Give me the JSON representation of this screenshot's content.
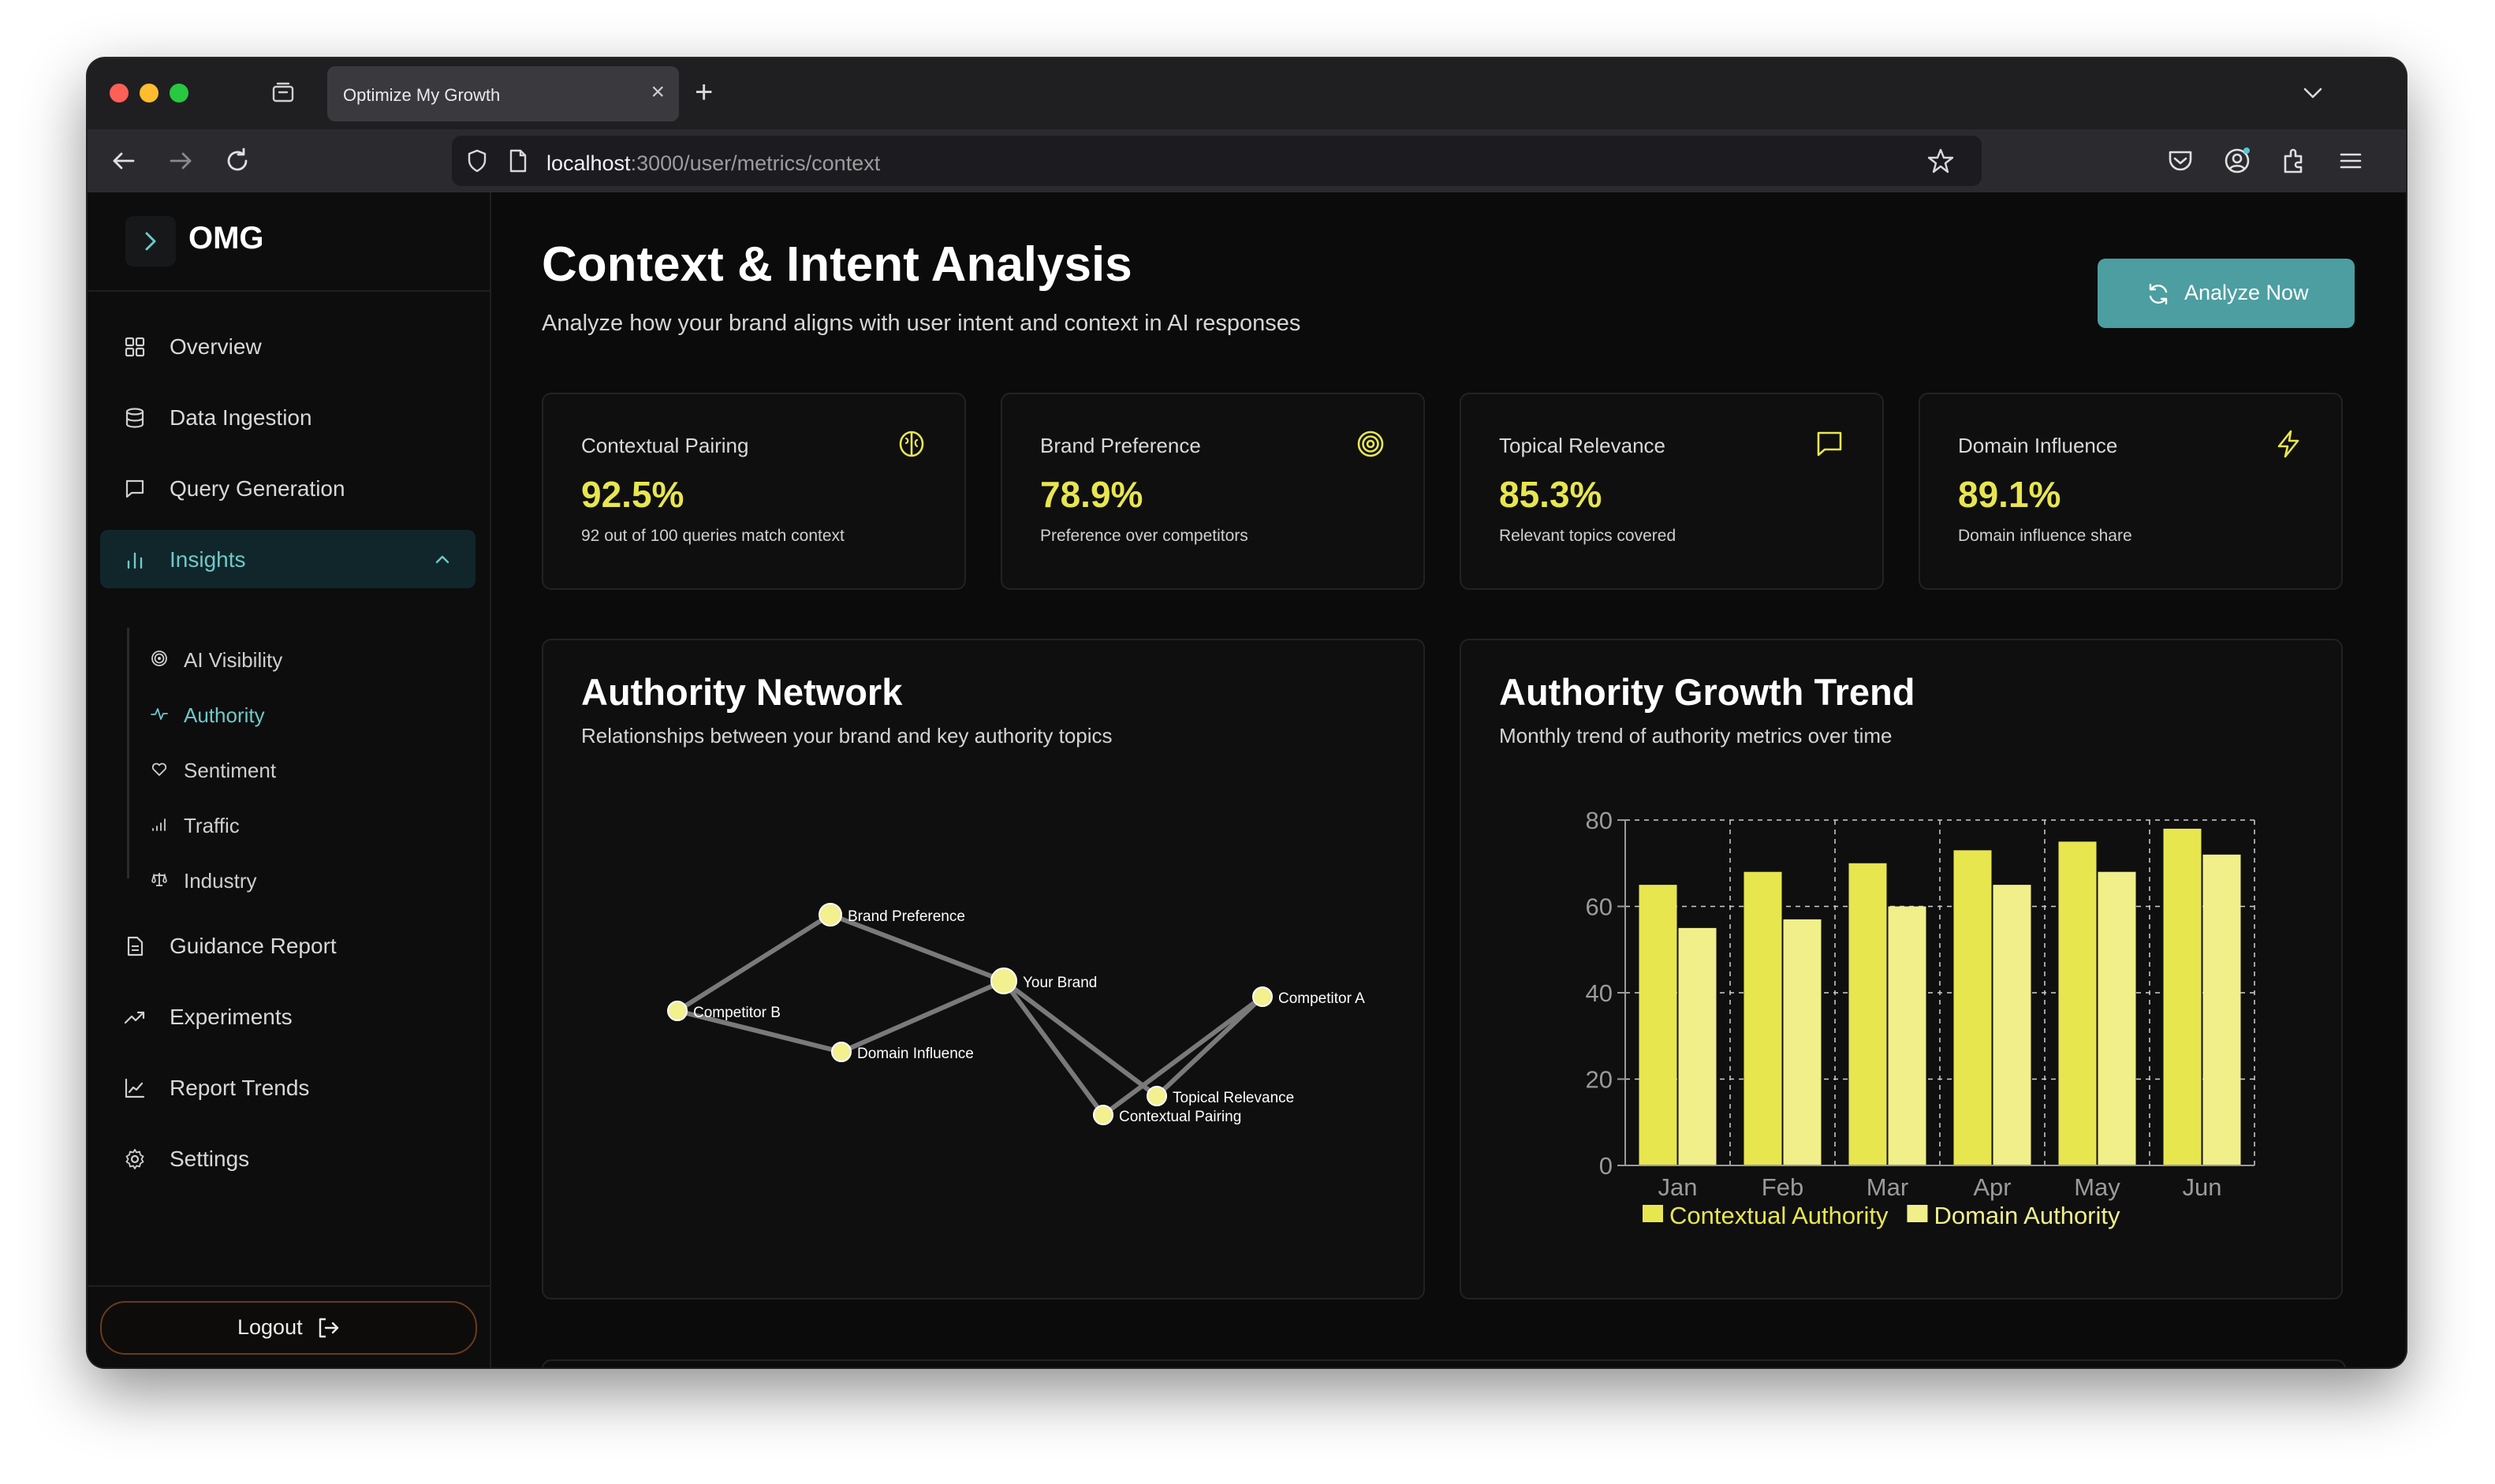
{
  "browser": {
    "tab_title": "Optimize My Growth",
    "tab_close": "×",
    "new_tab": "+",
    "url_host": "localhost",
    "url_path": ":3000/user/metrics/context"
  },
  "sidebar": {
    "brand": "OMG",
    "items": [
      {
        "label": "Overview",
        "icon": "grid-icon"
      },
      {
        "label": "Data Ingestion",
        "icon": "database-icon"
      },
      {
        "label": "Query Generation",
        "icon": "message-square-icon"
      },
      {
        "label": "Insights",
        "icon": "bar-chart-icon",
        "expanded": true
      },
      {
        "label": "Guidance Report",
        "icon": "file-text-icon"
      },
      {
        "label": "Experiments",
        "icon": "trending-up-icon"
      },
      {
        "label": "Report Trends",
        "icon": "line-chart-icon"
      },
      {
        "label": "Settings",
        "icon": "gear-icon"
      }
    ],
    "sub_items": [
      {
        "label": "AI Visibility",
        "icon": "radar-icon"
      },
      {
        "label": "Authority",
        "icon": "activity-icon",
        "active": true
      },
      {
        "label": "Sentiment",
        "icon": "heart-icon"
      },
      {
        "label": "Traffic",
        "icon": "signal-icon"
      },
      {
        "label": "Industry",
        "icon": "scale-icon"
      }
    ],
    "logout_label": "Logout"
  },
  "header": {
    "title": "Context & Intent Analysis",
    "subtitle": "Analyze how your brand aligns with user intent and context in AI responses",
    "analyze_label": "Analyze Now"
  },
  "stats": [
    {
      "title": "Contextual Pairing",
      "value": "92.5%",
      "desc": "92 out of 100 queries match context",
      "icon": "brain-icon"
    },
    {
      "title": "Brand Preference",
      "value": "78.9%",
      "desc": "Preference over competitors",
      "icon": "target-icon"
    },
    {
      "title": "Topical Relevance",
      "value": "85.3%",
      "desc": "Relevant topics covered",
      "icon": "message-square-icon"
    },
    {
      "title": "Domain Influence",
      "value": "89.1%",
      "desc": "Domain influence share",
      "icon": "zap-icon"
    }
  ],
  "network": {
    "title": "Authority Network",
    "subtitle": "Relationships between your brand and key authority topics",
    "nodes": [
      {
        "id": "brand-preference",
        "label": "Brand Preference"
      },
      {
        "id": "your-brand",
        "label": "Your Brand"
      },
      {
        "id": "competitor-a",
        "label": "Competitor A"
      },
      {
        "id": "competitor-b",
        "label": "Competitor B"
      },
      {
        "id": "domain-influence",
        "label": "Domain Influence"
      },
      {
        "id": "topical-relevance",
        "label": "Topical Relevance"
      },
      {
        "id": "contextual-pairing",
        "label": "Contextual Pairing"
      }
    ],
    "links": [
      [
        "competitor-b",
        "brand-preference"
      ],
      [
        "competitor-b",
        "domain-influence"
      ],
      [
        "brand-preference",
        "your-brand"
      ],
      [
        "domain-influence",
        "your-brand"
      ],
      [
        "your-brand",
        "topical-relevance"
      ],
      [
        "your-brand",
        "contextual-pairing"
      ],
      [
        "competitor-a",
        "topical-relevance"
      ],
      [
        "competitor-a",
        "contextual-pairing"
      ]
    ]
  },
  "trend": {
    "title": "Authority Growth Trend",
    "subtitle": "Monthly trend of authority metrics over time",
    "chart_data": {
      "type": "bar",
      "categories": [
        "Jan",
        "Feb",
        "Mar",
        "Apr",
        "May",
        "Jun"
      ],
      "series": [
        {
          "name": "Contextual Authority",
          "values": [
            65,
            68,
            70,
            73,
            75,
            78
          ],
          "color": "#e8e64f"
        },
        {
          "name": "Domain Authority",
          "values": [
            55,
            57,
            60,
            65,
            68,
            72
          ],
          "color": "#f0ef8a"
        }
      ],
      "ylim": [
        0,
        80
      ],
      "yticks": [
        0,
        20,
        40,
        60,
        80
      ],
      "grid": true,
      "legend": "bottom"
    }
  }
}
